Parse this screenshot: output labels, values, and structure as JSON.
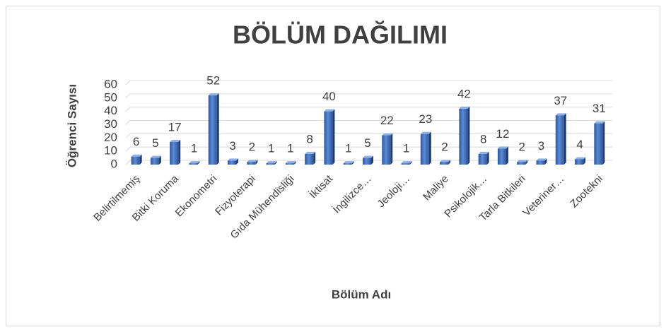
{
  "chart_data": {
    "type": "bar",
    "title": "BÖLÜM DAĞILIMI",
    "x_label": "Bölüm Adı",
    "y_label": "Öğrenci Sayısı",
    "categories": [
      "Belirtilmemiş",
      null,
      "Bitki Koruma",
      null,
      "Ekonometri",
      null,
      "Fizyoterapi",
      null,
      "Gıda Mühendisliği",
      null,
      "İktisat",
      null,
      "İngilizce…",
      null,
      "Jeoloji…",
      null,
      "Maliye",
      null,
      "Psikolojik…",
      null,
      "Tarla Bitkileri",
      null,
      "Veteriner…",
      null,
      "Zootekni"
    ],
    "values": [
      6,
      5,
      17,
      1,
      52,
      3,
      2,
      1,
      1,
      8,
      40,
      1,
      5,
      22,
      1,
      23,
      2,
      42,
      8,
      12,
      2,
      3,
      37,
      4,
      31
    ],
    "color": "#4472c4",
    "ylim": [
      0,
      60
    ],
    "yticks": [
      0,
      10,
      20,
      30,
      40,
      50,
      60
    ],
    "grid": true
  }
}
